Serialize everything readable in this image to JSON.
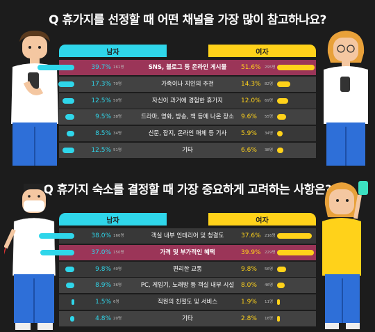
{
  "chart_data": [
    {
      "type": "bar",
      "title": "Q 휴가지를 선정할 때 어떤 채널을 가장 많이 참고하나요?",
      "legend": [
        "남자",
        "여자"
      ],
      "categories": [
        "SNS, 블로그 등 온라인 게시물",
        "가족이나 지인의 추천",
        "자신이 과거에 경험한 휴가지",
        "드라마, 영화, 방송, 책 등에 나온 장소",
        "신문, 잡지, 온라인 매체 등 기사",
        "기타"
      ],
      "series": [
        {
          "name": "남자",
          "values": [
            39.7,
            17.3,
            12.5,
            9.5,
            8.5,
            12.5
          ],
          "labels": [
            "39.7%",
            "17.3%",
            "12.5%",
            "9.5%",
            "8.5%",
            "12.5%"
          ],
          "counts": [
            "161명",
            "70명",
            "50명",
            "38명",
            "34명",
            "51명"
          ]
        },
        {
          "name": "여자",
          "values": [
            51.6,
            14.3,
            12.0,
            9.6,
            5.9,
            6.6
          ],
          "labels": [
            "51.6%",
            "14.3%",
            "12.0%",
            "9.6%",
            "5.9%",
            "6.6%"
          ],
          "counts": [
            "295명",
            "82명",
            "69명",
            "55명",
            "34명",
            "38명"
          ]
        }
      ],
      "highlight_row": 0
    },
    {
      "type": "bar",
      "title": "Q 휴가지 숙소를 결정할 때 가장 중요하게 고려하는 사항은?",
      "legend": [
        "남자",
        "여자"
      ],
      "categories": [
        "객실 내부 인테리어 및 청결도",
        "가격 및 부가적인 혜택",
        "편리한 교통",
        "PC, 게임기, 노래방 등 객실 내부 시설",
        "직원의 친절도 및 서비스",
        "기타"
      ],
      "series": [
        {
          "name": "남자",
          "values": [
            38.0,
            37.0,
            9.8,
            8.9,
            1.5,
            4.8
          ],
          "labels": [
            "38.0%",
            "37.0%",
            "9.8%",
            "8.9%",
            "1.5%",
            "4.8%"
          ],
          "counts": [
            "160명",
            "150명",
            "40명",
            "36명",
            "6명",
            "20명"
          ]
        },
        {
          "name": "여자",
          "values": [
            37.6,
            39.9,
            9.8,
            8.0,
            1.9,
            2.8
          ],
          "labels": [
            "37.6%",
            "39.9%",
            "9.8%",
            "8.0%",
            "1.9%",
            "2.8%"
          ],
          "counts": [
            "216명",
            "229명",
            "56명",
            "46명",
            "11명",
            "16명"
          ]
        }
      ],
      "highlight_row": 1
    }
  ],
  "colors": {
    "male": "#2fd6ea",
    "female": "#ffd21a",
    "highlight_row": "#9b3558",
    "background": "#1c1c1c"
  }
}
